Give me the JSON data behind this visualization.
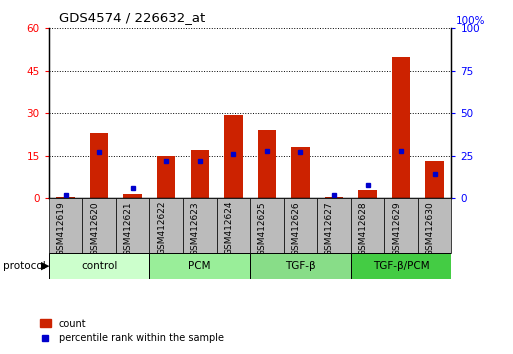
{
  "title": "GDS4574 / 226632_at",
  "samples": [
    "GSM412619",
    "GSM412620",
    "GSM412621",
    "GSM412622",
    "GSM412623",
    "GSM412624",
    "GSM412625",
    "GSM412626",
    "GSM412627",
    "GSM412628",
    "GSM412629",
    "GSM412630"
  ],
  "count_values": [
    0.5,
    23,
    1.5,
    15,
    17,
    29.5,
    24,
    18,
    0.5,
    3,
    50,
    13
  ],
  "percentile_values": [
    2,
    27,
    6,
    22,
    22,
    26,
    28,
    27,
    2,
    8,
    28,
    14
  ],
  "groups": [
    {
      "label": "control",
      "start": 0,
      "end": 3,
      "color": "#ccffcc"
    },
    {
      "label": "PCM",
      "start": 3,
      "end": 6,
      "color": "#99ee99"
    },
    {
      "label": "TGF-β",
      "start": 6,
      "end": 9,
      "color": "#88dd88"
    },
    {
      "label": "TGF-β/PCM",
      "start": 9,
      "end": 12,
      "color": "#44cc44"
    }
  ],
  "ylim_left": [
    0,
    60
  ],
  "ylim_right": [
    0,
    100
  ],
  "yticks_left": [
    0,
    15,
    30,
    45,
    60
  ],
  "yticks_right": [
    0,
    25,
    50,
    75,
    100
  ],
  "bar_color": "#cc2200",
  "dot_color": "#0000cc",
  "bar_width": 0.55,
  "background_color": "#ffffff",
  "legend_items": [
    "count",
    "percentile rank within the sample"
  ],
  "protocol_label": "protocol",
  "sample_box_color": "#bbbbbb",
  "group_border_color": "#000000"
}
